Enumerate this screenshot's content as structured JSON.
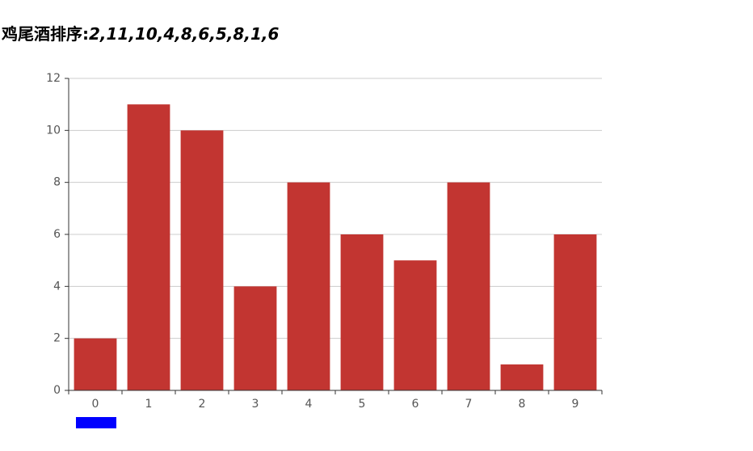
{
  "chart_data": {
    "type": "bar",
    "title": "鸡尾酒排序:",
    "subtitle": "2,11,10,4,8,6,5,8,1,6",
    "categories": [
      "0",
      "1",
      "2",
      "3",
      "4",
      "5",
      "6",
      "7",
      "8",
      "9"
    ],
    "values": [
      2,
      11,
      10,
      4,
      8,
      6,
      5,
      8,
      1,
      6
    ],
    "color": "#c23531",
    "ylim": [
      0,
      12
    ],
    "yticks": [
      0,
      2,
      4,
      6,
      8,
      10,
      12
    ],
    "grid": true
  }
}
